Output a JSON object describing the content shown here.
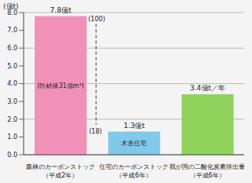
{
  "chart_data": {
    "type": "bar",
    "y_label": "(億t)",
    "categories": [
      "森林のカーボンストック（平成2年）",
      "住宅のカーボンストック（平成6年）",
      "我が国の二酸化炭素排出量（平成6年）"
    ],
    "values": [
      7.8,
      1.3,
      3.4
    ],
    "value_labels": [
      "7.8億t",
      "1.3億t",
      "3.4億t／年"
    ],
    "colors": [
      "#f291b8",
      "#7fc9ea",
      "#8fd25c"
    ],
    "ylim": [
      0,
      8
    ],
    "yticks": [
      {
        "value": 0,
        "label": "0.0"
      },
      {
        "value": 1,
        "label": "1.0"
      },
      {
        "value": 2,
        "label": "2.0"
      },
      {
        "value": 3,
        "label": "3.0"
      },
      {
        "value": 4,
        "label": "4.0"
      },
      {
        "value": 5,
        "label": "5.0"
      },
      {
        "value": 6,
        "label": "6.0"
      },
      {
        "value": 7,
        "label": "7.0"
      },
      {
        "value": 8,
        "label": "8.0"
      }
    ],
    "grid": true,
    "data_labels": true,
    "annotations": {
      "inside": [
        "(幹材積31億m³)",
        "木造住宅",
        null
      ],
      "ratio": [
        "(100)",
        "(18)"
      ]
    }
  }
}
